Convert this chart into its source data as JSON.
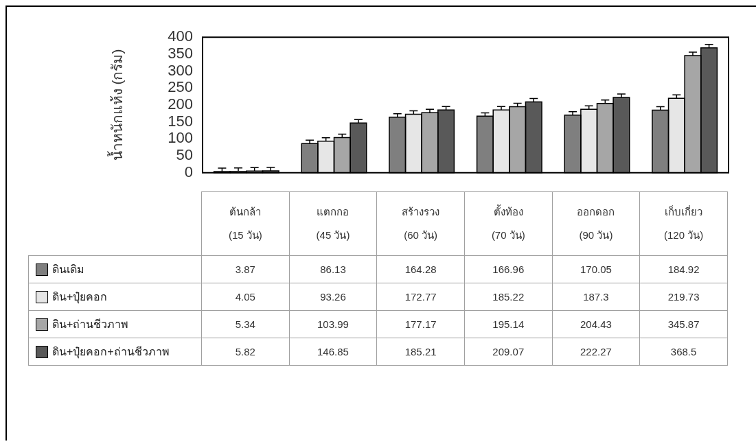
{
  "chart_data": {
    "type": "bar",
    "ylabel": "น้ำหนักแห้ง (กรัม)",
    "categories": [
      "ต้นกล้า\n(15 วัน)",
      "แตกกอ\n(45 วัน)",
      "สร้างรวง\n(60 วัน)",
      "ตั้งท้อง\n(70 วัน)",
      "ออกดอก\n(90 วัน)",
      "เก็บเกี่ยว\n(120 วัน)"
    ],
    "series": [
      {
        "name": "ดินเดิม",
        "color": "#7f7f7f",
        "values": [
          3.87,
          86.13,
          164.28,
          166.96,
          170.05,
          184.92
        ],
        "errors": [
          [
            3.87,
            13.87
          ],
          [
            86.13,
            96.13
          ],
          [
            164.28,
            174.28
          ],
          [
            166.96,
            176.96
          ],
          [
            170.05,
            180.05
          ],
          [
            184.92,
            194.92
          ]
        ]
      },
      {
        "name": "ดิน+ปุ๋ยคอก",
        "color": "#e6e6e6",
        "values": [
          4.05,
          93.26,
          172.77,
          185.22,
          187.3,
          219.73
        ],
        "errors": [
          [
            4.05,
            14.05
          ],
          [
            93.26,
            103.26
          ],
          [
            172.77,
            182.77
          ],
          [
            185.22,
            195.22
          ],
          [
            187.3,
            197.3
          ],
          [
            219.73,
            229.73
          ]
        ]
      },
      {
        "name": "ดิน+ถ่านชีวภาพ",
        "color": "#a6a6a6",
        "values": [
          5.34,
          103.99,
          177.17,
          195.14,
          204.43,
          345.87
        ],
        "errors": [
          [
            5.34,
            15.34
          ],
          [
            103.99,
            113.99
          ],
          [
            177.17,
            187.17
          ],
          [
            195.14,
            205.14
          ],
          [
            204.43,
            214.43
          ],
          [
            345.87,
            355.87
          ]
        ]
      },
      {
        "name": "ดิน+ปุ๋ยคอก+ถ่านชีวภาพ",
        "color": "#595959",
        "values": [
          5.82,
          146.85,
          185.21,
          209.07,
          222.27,
          368.5
        ],
        "errors": [
          [
            5.82,
            15.82
          ],
          [
            146.85,
            156.85
          ],
          [
            185.21,
            195.21
          ],
          [
            209.07,
            219.07
          ],
          [
            222.27,
            232.27
          ],
          [
            368.5,
            378.5
          ]
        ]
      }
    ],
    "ylim": [
      0,
      400
    ],
    "yticks": [
      0,
      50,
      100,
      150,
      200,
      250,
      300,
      350,
      400
    ],
    "grid": false,
    "legend": "bottom",
    "data_labels": true
  }
}
